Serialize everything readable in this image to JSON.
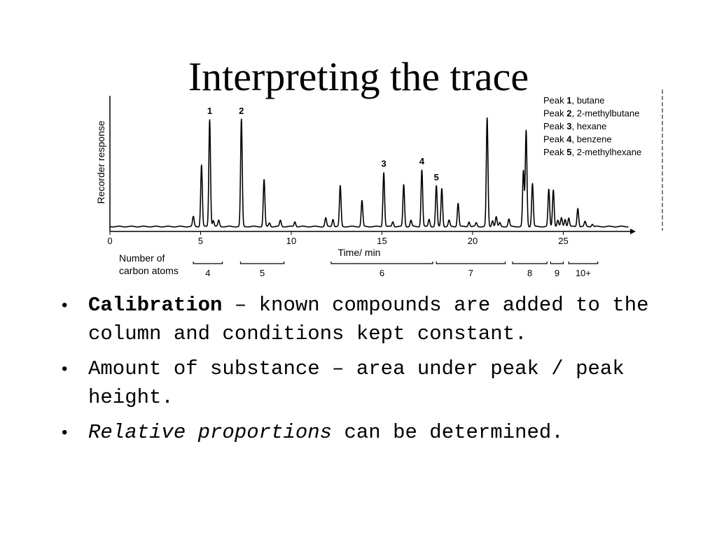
{
  "title": "Interpreting the trace",
  "chart_data": {
    "type": "line",
    "ylabel": "Recorder response",
    "xlabel": "Time/ min",
    "xlim": [
      0,
      29
    ],
    "x_ticks": [
      0,
      5,
      10,
      15,
      20,
      25
    ],
    "x_tick_labels": [
      "0",
      "5",
      "10",
      "15",
      "20",
      "25"
    ],
    "peaks": [
      {
        "t": 4.6,
        "h": 0.08
      },
      {
        "t": 5.05,
        "h": 0.5
      },
      {
        "t": 5.5,
        "h": 0.87,
        "label": "1"
      },
      {
        "t": 5.7,
        "h": 0.05
      },
      {
        "t": 6.0,
        "h": 0.05
      },
      {
        "t": 7.25,
        "h": 0.87,
        "label": "2"
      },
      {
        "t": 8.5,
        "h": 0.38
      },
      {
        "t": 8.8,
        "h": 0.03
      },
      {
        "t": 9.4,
        "h": 0.05
      },
      {
        "t": 10.2,
        "h": 0.04
      },
      {
        "t": 11.9,
        "h": 0.07
      },
      {
        "t": 12.3,
        "h": 0.06
      },
      {
        "t": 12.7,
        "h": 0.33
      },
      {
        "t": 13.9,
        "h": 0.21
      },
      {
        "t": 15.1,
        "h": 0.44,
        "label": "3"
      },
      {
        "t": 15.6,
        "h": 0.04
      },
      {
        "t": 16.2,
        "h": 0.34
      },
      {
        "t": 16.6,
        "h": 0.05
      },
      {
        "t": 17.2,
        "h": 0.46,
        "label": "4"
      },
      {
        "t": 17.6,
        "h": 0.06
      },
      {
        "t": 18.0,
        "h": 0.33,
        "label": "5"
      },
      {
        "t": 18.3,
        "h": 0.31
      },
      {
        "t": 18.7,
        "h": 0.05
      },
      {
        "t": 19.2,
        "h": 0.19
      },
      {
        "t": 19.8,
        "h": 0.04
      },
      {
        "t": 20.2,
        "h": 0.03
      },
      {
        "t": 20.8,
        "h": 0.88
      },
      {
        "t": 21.1,
        "h": 0.05
      },
      {
        "t": 21.3,
        "h": 0.08
      },
      {
        "t": 21.5,
        "h": 0.03
      },
      {
        "t": 22.0,
        "h": 0.06
      },
      {
        "t": 22.8,
        "h": 0.45
      },
      {
        "t": 22.95,
        "h": 0.78
      },
      {
        "t": 23.3,
        "h": 0.35
      },
      {
        "t": 24.2,
        "h": 0.3
      },
      {
        "t": 24.45,
        "h": 0.3
      },
      {
        "t": 24.7,
        "h": 0.05
      },
      {
        "t": 24.9,
        "h": 0.07
      },
      {
        "t": 25.1,
        "h": 0.06
      },
      {
        "t": 25.3,
        "h": 0.07
      },
      {
        "t": 25.8,
        "h": 0.15
      },
      {
        "t": 26.2,
        "h": 0.04
      },
      {
        "t": 26.6,
        "h": 0.02
      }
    ],
    "legend": [
      {
        "pre": "Peak ",
        "num": "1",
        "post": ", butane"
      },
      {
        "pre": "Peak ",
        "num": "2",
        "post": ", 2-methylbutane"
      },
      {
        "pre": "Peak ",
        "num": "3",
        "post": ", hexane"
      },
      {
        "pre": "Peak ",
        "num": "4",
        "post": ", benzene"
      },
      {
        "pre": "Peak ",
        "num": "5",
        "post": ", 2-methylhexane"
      }
    ],
    "carbon_label_line1": "Number of",
    "carbon_label_line2": "carbon atoms",
    "carbon_groups": [
      {
        "from": 4.6,
        "to": 6.2,
        "label": "4"
      },
      {
        "from": 7.2,
        "to": 9.6,
        "label": "5"
      },
      {
        "from": 12.2,
        "to": 17.8,
        "label": "6"
      },
      {
        "from": 18.0,
        "to": 21.8,
        "label": "7"
      },
      {
        "from": 22.2,
        "to": 24.1,
        "label": "8"
      },
      {
        "from": 24.3,
        "to": 25.0,
        "label": "9"
      },
      {
        "from": 25.3,
        "to": 26.9,
        "label": "10+"
      }
    ]
  },
  "bullets": [
    {
      "bold": "Calibration",
      "rest": " – known compounds are added to the column and conditions kept constant."
    },
    {
      "text": "Amount of substance – area under peak / peak height."
    },
    {
      "italic": "Relative proportions",
      "rest": " can be determined."
    }
  ]
}
